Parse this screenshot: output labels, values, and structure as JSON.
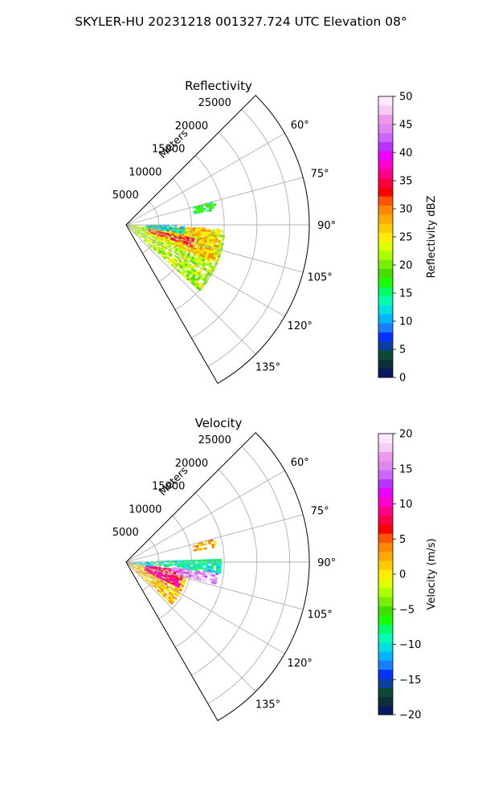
{
  "suptitle": "SKYLER-HU  20231218  001327.724 UTC Elevation 08°",
  "chart_data": [
    {
      "type": "heatmap",
      "title": "Reflectivity",
      "range_axis_label": "Meters",
      "range_ticks": [
        5000,
        10000,
        15000,
        20000,
        25000
      ],
      "range_max": 28000,
      "azimuth_range_deg": [
        45,
        150
      ],
      "azimuth_tick_labels": [
        "60°",
        "75°",
        "90°",
        "105°",
        "120°",
        "135°"
      ],
      "grid": true,
      "colorbar": {
        "label": "Reflectivity dBZ",
        "range": [
          0,
          50
        ],
        "ticks": [
          0,
          5,
          10,
          15,
          20,
          25,
          30,
          35,
          40,
          45,
          50
        ],
        "colors": [
          "#0a1a5c",
          "#0d2f3a",
          "#0e4a32",
          "#0b3fa0",
          "#0033ff",
          "#1a7fff",
          "#00b5ff",
          "#00e0e0",
          "#00ffb0",
          "#00ff66",
          "#1aff00",
          "#44dd00",
          "#77ee00",
          "#aaff00",
          "#ddff00",
          "#ffee00",
          "#ffcc00",
          "#ffaa00",
          "#ff8800",
          "#ff5500",
          "#ff0000",
          "#ff0044",
          "#ff0088",
          "#ff00cc",
          "#ee00ff",
          "#bb33ff",
          "#cc66ff",
          "#dd88ee",
          "#ee99ee",
          "#f7ccf7",
          "#fde8fd"
        ]
      },
      "echo_regions": [
        {
          "az": [
            93,
            132
          ],
          "range": [
            0,
            15000
          ],
          "value": 22
        },
        {
          "az": [
            92,
            112
          ],
          "range": [
            3000,
            14500
          ],
          "value": 27
        },
        {
          "az": [
            101,
            108
          ],
          "range": [
            3500,
            10500
          ],
          "value": 34
        },
        {
          "az": [
            90,
            98
          ],
          "range": [
            3000,
            9000
          ],
          "value": 12
        },
        {
          "az": [
            75,
            80
          ],
          "range": [
            10500,
            14000
          ],
          "value": 17
        }
      ]
    },
    {
      "type": "heatmap",
      "title": "Velocity",
      "range_axis_label": "Meters",
      "range_ticks": [
        5000,
        10000,
        15000,
        20000,
        25000
      ],
      "range_max": 28000,
      "azimuth_range_deg": [
        45,
        150
      ],
      "azimuth_tick_labels": [
        "60°",
        "75°",
        "90°",
        "105°",
        "120°",
        "135°"
      ],
      "grid": true,
      "colorbar": {
        "label": "Velocity (m/s)",
        "range": [
          -20,
          20
        ],
        "ticks": [
          -20,
          -15,
          -10,
          -5,
          0,
          5,
          10,
          15,
          20
        ],
        "colors": [
          "#0a1a5c",
          "#0d2f3a",
          "#0e4a32",
          "#0b3fa0",
          "#0033ff",
          "#1a7fff",
          "#00b5ff",
          "#00e0e0",
          "#00ffb0",
          "#00ff66",
          "#1aff00",
          "#44dd00",
          "#77ee00",
          "#aaff00",
          "#ddff00",
          "#ffee00",
          "#ffcc00",
          "#ffaa00",
          "#ff8800",
          "#ff5500",
          "#ff0000",
          "#ff0044",
          "#ff0088",
          "#ff00cc",
          "#ee00ff",
          "#bb33ff",
          "#cc66ff",
          "#dd88ee",
          "#ee99ee",
          "#f7ccf7",
          "#fde8fd"
        ]
      },
      "echo_regions": [
        {
          "az": [
            100,
            132
          ],
          "range": [
            0,
            9500
          ],
          "value": 2
        },
        {
          "az": [
            98,
            116
          ],
          "range": [
            3000,
            9000
          ],
          "value": 9
        },
        {
          "az": [
            95,
            104
          ],
          "range": [
            7000,
            14000
          ],
          "value": 16
        },
        {
          "az": [
            88,
            97
          ],
          "range": [
            3000,
            14500
          ],
          "value": -9
        },
        {
          "az": [
            92,
            100
          ],
          "range": [
            0,
            4000
          ],
          "value": -11
        },
        {
          "az": [
            75,
            80
          ],
          "range": [
            10500,
            14000
          ],
          "value": 2
        }
      ]
    }
  ]
}
